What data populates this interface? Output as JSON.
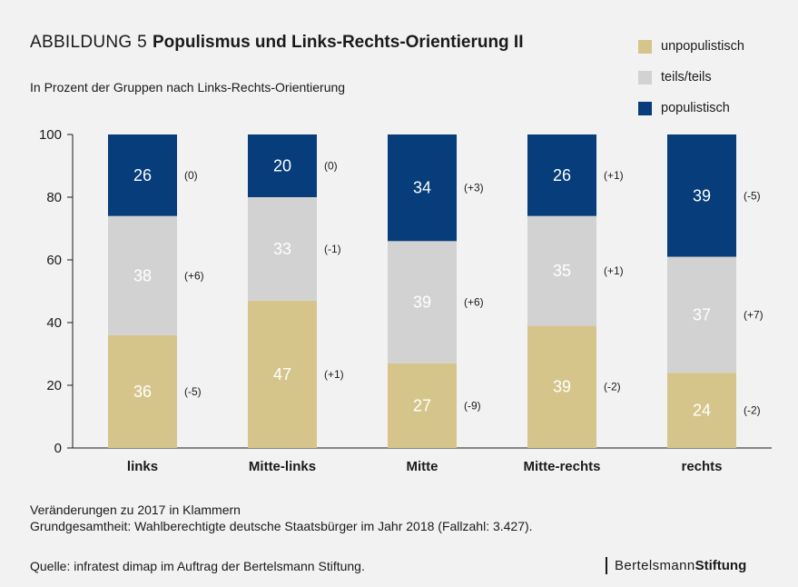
{
  "header": {
    "title_prefix": "ABBILDUNG 5",
    "title": "Populismus und Links-Rechts-Orientierung II",
    "subtitle": "In Prozent der Gruppen nach Links-Rechts-Orientierung"
  },
  "legend": [
    {
      "label": "unpopulistisch",
      "color": "#d6c58b"
    },
    {
      "label": "teils/teils",
      "color": "#d2d2d2"
    },
    {
      "label": "populistisch",
      "color": "#063d7a"
    }
  ],
  "footer": {
    "note1": "Veränderungen zu 2017 in Klammern",
    "note2": "Grundgesamtheit: Wahlberechtigte deutsche Staatsbürger im Jahr 2018 (Fallzahl: 3.427).",
    "source": "Quelle: infratest dimap im Auftrag der Bertelsmann Stiftung.",
    "brand_a": "Bertelsmann",
    "brand_b": "Stiftung"
  },
  "chart_data": {
    "type": "bar",
    "stacked": true,
    "categories": [
      "links",
      "Mitte-links",
      "Mitte",
      "Mitte-rechts",
      "rechts"
    ],
    "series": [
      {
        "name": "unpopulistisch",
        "color": "#d6c58b",
        "label_color": "#ffffff",
        "values": [
          36,
          47,
          27,
          39,
          24
        ],
        "changes": [
          "(-5)",
          "(+1)",
          "(-9)",
          "(-2)",
          "(-2)"
        ]
      },
      {
        "name": "teils/teils",
        "color": "#d2d2d2",
        "label_color": "#ffffff",
        "values": [
          38,
          33,
          39,
          35,
          37
        ],
        "changes": [
          "(+6)",
          "(-1)",
          "(+6)",
          "(+1)",
          "(+7)"
        ]
      },
      {
        "name": "populistisch",
        "color": "#063d7a",
        "label_color": "#ffffff",
        "values": [
          26,
          20,
          34,
          26,
          39
        ],
        "changes": [
          "(0)",
          "(0)",
          "(+3)",
          "(+1)",
          "(-5)"
        ]
      }
    ],
    "ylim": [
      0,
      100
    ],
    "yticks": [
      0,
      20,
      40,
      60,
      80,
      100
    ],
    "legend_position": "top-right"
  }
}
